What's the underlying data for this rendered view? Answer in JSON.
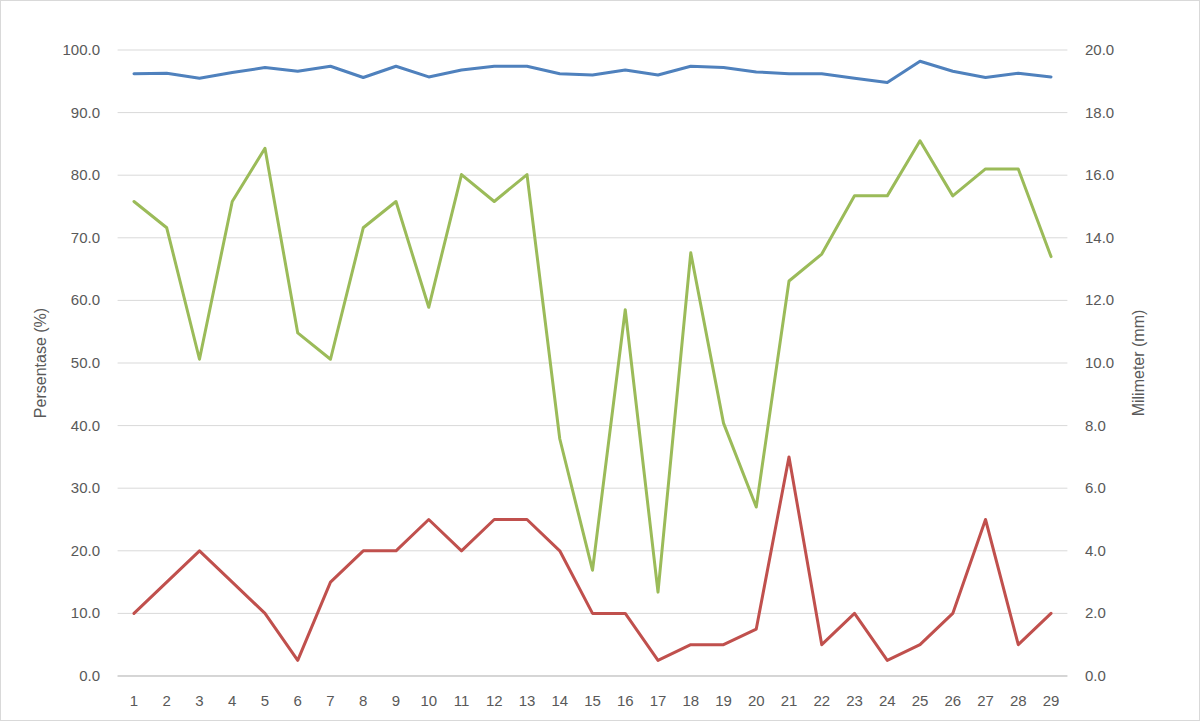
{
  "chart_data": {
    "type": "line",
    "y_label": "Persentase (%)",
    "y2_label": "Milimeter (mm)",
    "categories": [
      "1",
      "2",
      "3",
      "4",
      "5",
      "6",
      "7",
      "8",
      "9",
      "10",
      "11",
      "12",
      "13",
      "14",
      "15",
      "16",
      "17",
      "18",
      "19",
      "20",
      "21",
      "22",
      "23",
      "24",
      "25",
      "26",
      "27",
      "28",
      "29"
    ],
    "ylim": [
      0,
      100
    ],
    "yticks": [
      {
        "value": 0,
        "label": "0.0"
      },
      {
        "value": 10,
        "label": "10.0"
      },
      {
        "value": 20,
        "label": "20.0"
      },
      {
        "value": 30,
        "label": "30.0"
      },
      {
        "value": 40,
        "label": "40.0"
      },
      {
        "value": 50,
        "label": "50.0"
      },
      {
        "value": 60,
        "label": "60.0"
      },
      {
        "value": 70,
        "label": "70.0"
      },
      {
        "value": 80,
        "label": "80.0"
      },
      {
        "value": 90,
        "label": "90.0"
      },
      {
        "value": 100,
        "label": "100.0"
      }
    ],
    "y2lim": [
      0,
      20
    ],
    "y2ticks": [
      {
        "value": 0,
        "label": "0.0"
      },
      {
        "value": 2,
        "label": "2.0"
      },
      {
        "value": 4,
        "label": "4.0"
      },
      {
        "value": 6,
        "label": "6.0"
      },
      {
        "value": 8,
        "label": "8.0"
      },
      {
        "value": 10,
        "label": "10.0"
      },
      {
        "value": 12,
        "label": "12.0"
      },
      {
        "value": 14,
        "label": "14.0"
      },
      {
        "value": 16,
        "label": "16.0"
      },
      {
        "value": 18,
        "label": "18.0"
      },
      {
        "value": 20,
        "label": "20.0"
      }
    ],
    "grid": true,
    "series": [
      {
        "color": "#4f81bd",
        "axis": "y",
        "values": [
          96.2,
          96.3,
          95.5,
          96.4,
          97.2,
          96.6,
          97.4,
          95.6,
          97.4,
          95.7,
          96.8,
          97.4,
          97.4,
          96.2,
          96.0,
          96.8,
          96.0,
          97.4,
          97.2,
          96.5,
          96.2,
          96.2,
          95.5,
          94.8,
          98.2,
          96.6,
          95.6,
          96.3,
          95.7
        ]
      },
      {
        "color": "#9bbb59",
        "axis": "y",
        "values": [
          75.8,
          71.6,
          50.6,
          75.8,
          84.3,
          54.8,
          50.6,
          71.6,
          75.8,
          58.9,
          80.1,
          75.8,
          80.1,
          37.9,
          16.9,
          58.5,
          13.4,
          67.6,
          40.4,
          27.0,
          63.1,
          67.4,
          76.7,
          76.7,
          85.5,
          76.7,
          81.0,
          81.0,
          67.0
        ]
      },
      {
        "color": "#c0504d",
        "axis": "y2",
        "values": [
          2.0,
          3.0,
          4.0,
          3.0,
          2.0,
          0.5,
          3.0,
          4.0,
          4.0,
          5.0,
          4.0,
          5.0,
          5.0,
          4.0,
          2.0,
          2.0,
          0.5,
          1.0,
          1.0,
          1.5,
          7.0,
          1.0,
          2.0,
          0.5,
          1.0,
          2.0,
          5.0,
          1.0,
          2.0
        ]
      }
    ]
  }
}
